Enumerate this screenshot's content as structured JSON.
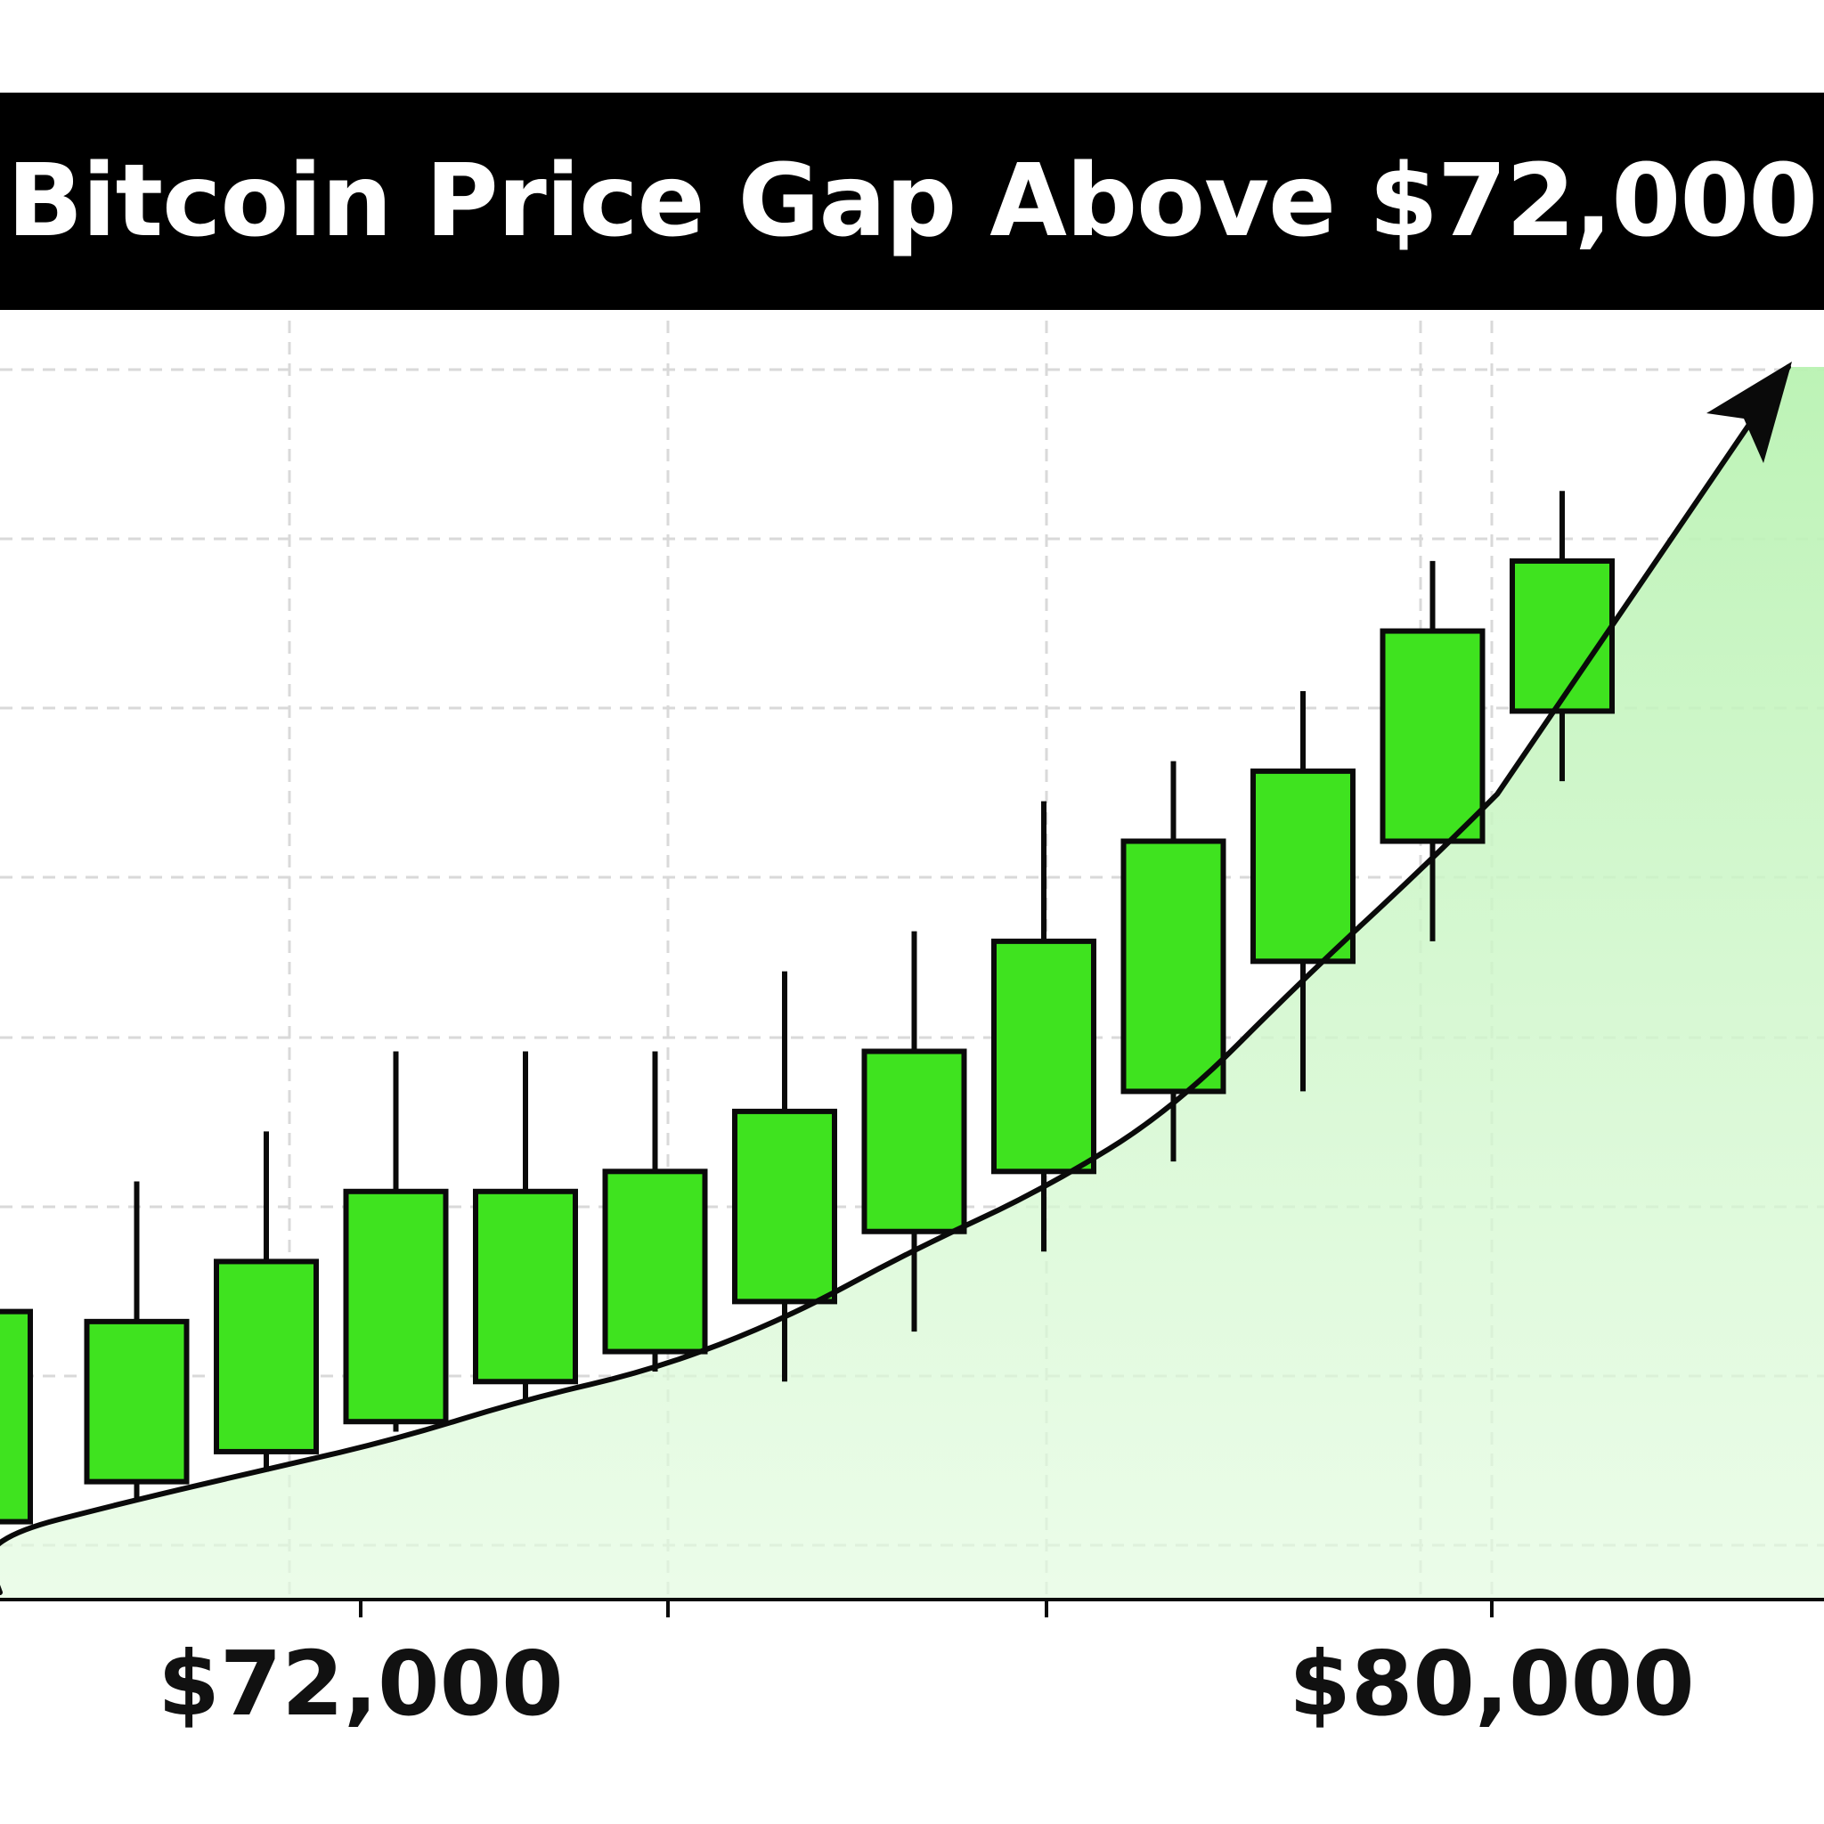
{
  "chart_data": {
    "type": "candlestick",
    "title": "Bitcoin Price Gap Above $72,000",
    "xlabel": "",
    "ylabel": "",
    "x_tick_labels": [
      {
        "value": 72000,
        "label": "$72,000"
      },
      {
        "value": 80000,
        "label": "$80,000"
      }
    ],
    "grid": true,
    "trend_arrow": true,
    "candles": [
      {
        "open": 6,
        "close": 27,
        "high": 27,
        "low": 6
      },
      {
        "open": 10,
        "close": 26,
        "high": 40,
        "low": 8
      },
      {
        "open": 13,
        "close": 32,
        "high": 45,
        "low": 11
      },
      {
        "open": 16,
        "close": 39,
        "high": 53,
        "low": 15
      },
      {
        "open": 20,
        "close": 39,
        "high": 53,
        "low": 18
      },
      {
        "open": 23,
        "close": 41,
        "high": 53,
        "low": 21
      },
      {
        "open": 28,
        "close": 47,
        "high": 61,
        "low": 20
      },
      {
        "open": 35,
        "close": 53,
        "high": 65,
        "low": 25
      },
      {
        "open": 41,
        "close": 64,
        "high": 78,
        "low": 33
      },
      {
        "open": 49,
        "close": 74,
        "high": 82,
        "low": 42
      },
      {
        "open": 62,
        "close": 81,
        "high": 89,
        "low": 49
      },
      {
        "open": 74,
        "close": 95,
        "high": 102,
        "low": 64
      },
      {
        "open": 87,
        "close": 102,
        "high": 109,
        "low": 80
      }
    ],
    "colors": {
      "candle_fill": "#3fe31f",
      "candle_outline": "#0a0a0a",
      "area_fill": "#b9f2b2",
      "trend_line": "#0a0a0a",
      "grid": "#d9d9d9"
    }
  }
}
